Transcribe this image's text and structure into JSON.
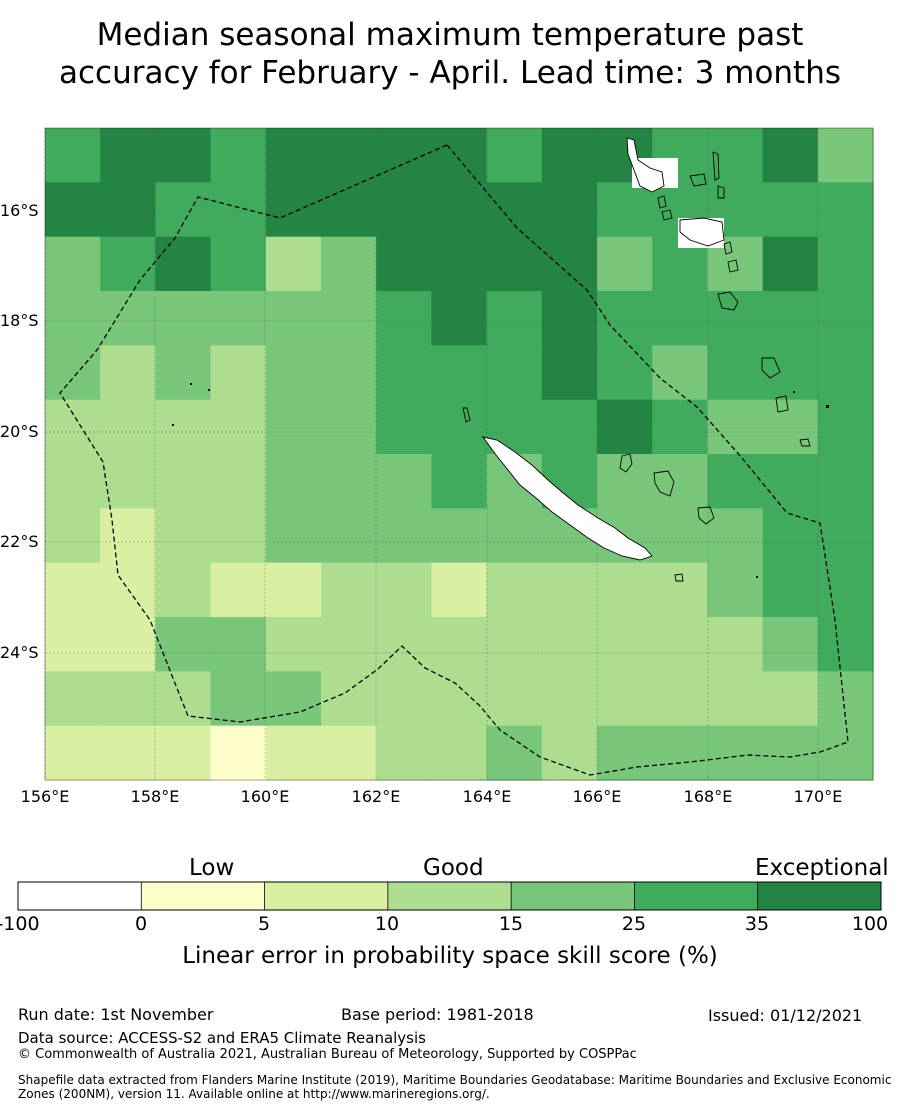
{
  "title": {
    "line1": "Median seasonal maximum temperature past",
    "line2": "accuracy for February - April. Lead time: 3 months"
  },
  "map": {
    "lon_labels": [
      "156°E",
      "158°E",
      "160°E",
      "162°E",
      "164°E",
      "166°E",
      "168°E",
      "170°E"
    ],
    "lat_labels": [
      "16°S",
      "18°S",
      "20°S",
      "22°S",
      "24°S"
    ],
    "lon_range": [
      156,
      171
    ],
    "lat_range": [
      -14.5,
      -26.3
    ],
    "grid_lines": true,
    "boundary_style": "dashed"
  },
  "colorbar": {
    "categories": [
      "Low",
      "Good",
      "Exceptional"
    ],
    "ticks": [
      "-100",
      "0",
      "5",
      "10",
      "15",
      "25",
      "35",
      "100"
    ],
    "colors": [
      "#ffffff",
      "#ffffcc",
      "#d9f0a3",
      "#addd8e",
      "#78c679",
      "#41ab5d",
      "#238443"
    ],
    "label": "Linear error in probability space skill score (%)"
  },
  "footer": {
    "run_date": "Run date: 1st November",
    "base_period": "Base period: 1981-2018",
    "issued": "Issued: 01/12/2021",
    "data_source": "Data source: ACCESS-S2 and ERA5 Climate Reanalysis",
    "copyright": "© Commonwealth of Australia 2021, Australian Bureau of Meteorology, Supported by COSPPac",
    "shapefile_line1": "Shapefile data extracted from Flanders Marine Institute (2019), Maritime Boundaries Geodatabase: Maritime Boundaries and Exclusive Economic",
    "shapefile_line2": "Zones (200NM), version 11. Available online at http://www.marineregions.org/."
  },
  "chart_data": {
    "type": "heatmap",
    "title": "Median seasonal maximum temperature past accuracy for February - April. Lead time: 3 months",
    "xlabel": "",
    "ylabel": "",
    "value_label": "Linear error in probability space skill score (%)",
    "class_bounds": [
      -100,
      0,
      5,
      10,
      15,
      25,
      35,
      100
    ],
    "grid_columns": 15,
    "grid_rows": 12,
    "cell_class_rows": [
      [
        5,
        6,
        6,
        5,
        6,
        6,
        6,
        6,
        5,
        6,
        6,
        5,
        5,
        6,
        4
      ],
      [
        6,
        6,
        5,
        5,
        6,
        6,
        6,
        6,
        6,
        6,
        5,
        5,
        5,
        5,
        5
      ],
      [
        4,
        5,
        6,
        5,
        3,
        4,
        6,
        6,
        6,
        6,
        4,
        5,
        4,
        6,
        5
      ],
      [
        4,
        4,
        4,
        4,
        4,
        4,
        5,
        6,
        5,
        6,
        5,
        5,
        5,
        5,
        5
      ],
      [
        4,
        3,
        4,
        3,
        4,
        4,
        5,
        5,
        5,
        6,
        5,
        4,
        5,
        5,
        5
      ],
      [
        3,
        3,
        3,
        3,
        4,
        4,
        5,
        5,
        5,
        5,
        6,
        5,
        4,
        4,
        5
      ],
      [
        3,
        3,
        3,
        3,
        4,
        4,
        4,
        5,
        4,
        5,
        4,
        4,
        5,
        5,
        5
      ],
      [
        3,
        2,
        3,
        3,
        4,
        4,
        4,
        4,
        4,
        4,
        4,
        4,
        4,
        5,
        5
      ],
      [
        2,
        2,
        3,
        2,
        2,
        3,
        3,
        2,
        3,
        3,
        3,
        3,
        4,
        5,
        5
      ],
      [
        2,
        2,
        4,
        4,
        3,
        3,
        3,
        3,
        3,
        3,
        3,
        3,
        3,
        4,
        5
      ],
      [
        3,
        3,
        3,
        4,
        4,
        3,
        3,
        3,
        3,
        3,
        3,
        3,
        3,
        3,
        4
      ],
      [
        2,
        2,
        2,
        1,
        2,
        2,
        3,
        3,
        4,
        3,
        4,
        4,
        4,
        4,
        4
      ]
    ],
    "legend": [
      "Low",
      "Good",
      "Exceptional"
    ]
  }
}
